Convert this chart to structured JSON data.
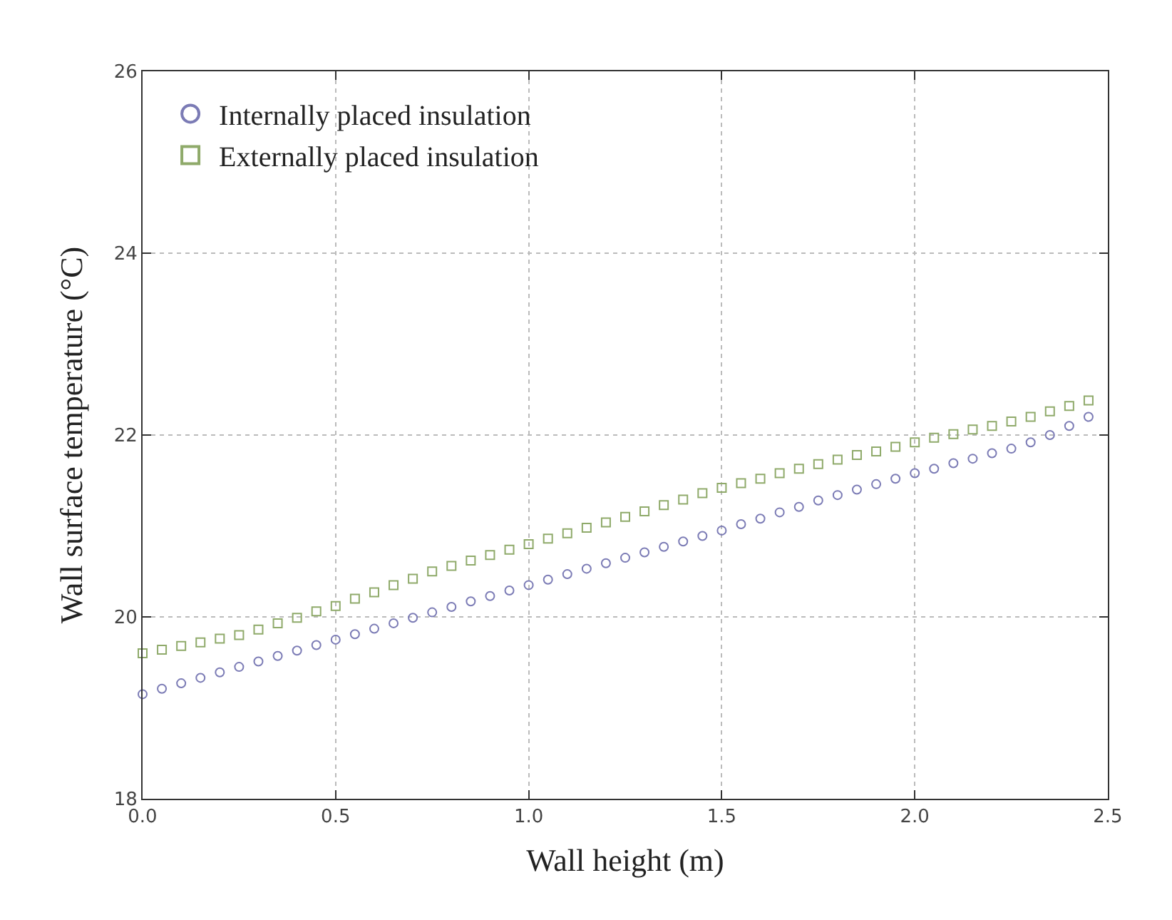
{
  "chart_data": {
    "type": "scatter",
    "xlabel": "Wall height (m)",
    "ylabel": "Wall surface temperature (°C)",
    "x": [
      0,
      0.05,
      0.1,
      0.15,
      0.2,
      0.25,
      0.3,
      0.35,
      0.4,
      0.45,
      0.5,
      0.55,
      0.6,
      0.65,
      0.7,
      0.75,
      0.8,
      0.85,
      0.9,
      0.95,
      1.0,
      1.05,
      1.1,
      1.15,
      1.2,
      1.25,
      1.3,
      1.35,
      1.4,
      1.45,
      1.5,
      1.55,
      1.6,
      1.65,
      1.7,
      1.75,
      1.8,
      1.85,
      1.9,
      1.95,
      2.0,
      2.05,
      2.1,
      2.15,
      2.2,
      2.25,
      2.3,
      2.35,
      2.4,
      2.45
    ],
    "series": [
      {
        "name": "Internally placed insulation",
        "color": "#7b7bb5",
        "marker": "circle",
        "values": [
          19.15,
          19.21,
          19.27,
          19.33,
          19.39,
          19.45,
          19.51,
          19.57,
          19.63,
          19.69,
          19.75,
          19.81,
          19.87,
          19.93,
          19.99,
          20.05,
          20.11,
          20.17,
          20.23,
          20.29,
          20.35,
          20.41,
          20.47,
          20.53,
          20.59,
          20.65,
          20.71,
          20.77,
          20.83,
          20.89,
          20.95,
          21.02,
          21.08,
          21.15,
          21.21,
          21.28,
          21.34,
          21.4,
          21.46,
          21.52,
          21.58,
          21.63,
          21.69,
          21.74,
          21.8,
          21.85,
          21.92,
          22.0,
          22.1,
          22.2
        ]
      },
      {
        "name": "Externally placed insulation",
        "color": "#8faa6a",
        "marker": "square",
        "values": [
          19.6,
          19.64,
          19.68,
          19.72,
          19.76,
          19.8,
          19.86,
          19.93,
          19.99,
          20.06,
          20.12,
          20.2,
          20.27,
          20.35,
          20.42,
          20.5,
          20.56,
          20.62,
          20.68,
          20.74,
          20.8,
          20.86,
          20.92,
          20.98,
          21.04,
          21.1,
          21.16,
          21.23,
          21.29,
          21.36,
          21.42,
          21.47,
          21.52,
          21.58,
          21.63,
          21.68,
          21.73,
          21.78,
          21.82,
          21.87,
          21.92,
          21.97,
          22.01,
          22.06,
          22.1,
          22.15,
          22.2,
          22.26,
          22.32,
          22.38
        ]
      }
    ],
    "xlim": [
      0,
      2.5
    ],
    "xticks": [
      {
        "value": 0,
        "label": "0.0"
      },
      {
        "value": 0.5,
        "label": "0.5"
      },
      {
        "value": 1,
        "label": "1.0"
      },
      {
        "value": 1.5,
        "label": "1.5"
      },
      {
        "value": 2,
        "label": "2.0"
      },
      {
        "value": 2.5,
        "label": "2.5"
      }
    ],
    "ylim": [
      18,
      26
    ],
    "yticks": [
      18,
      20,
      22,
      24,
      26
    ],
    "grid": true,
    "legend": "top left"
  }
}
